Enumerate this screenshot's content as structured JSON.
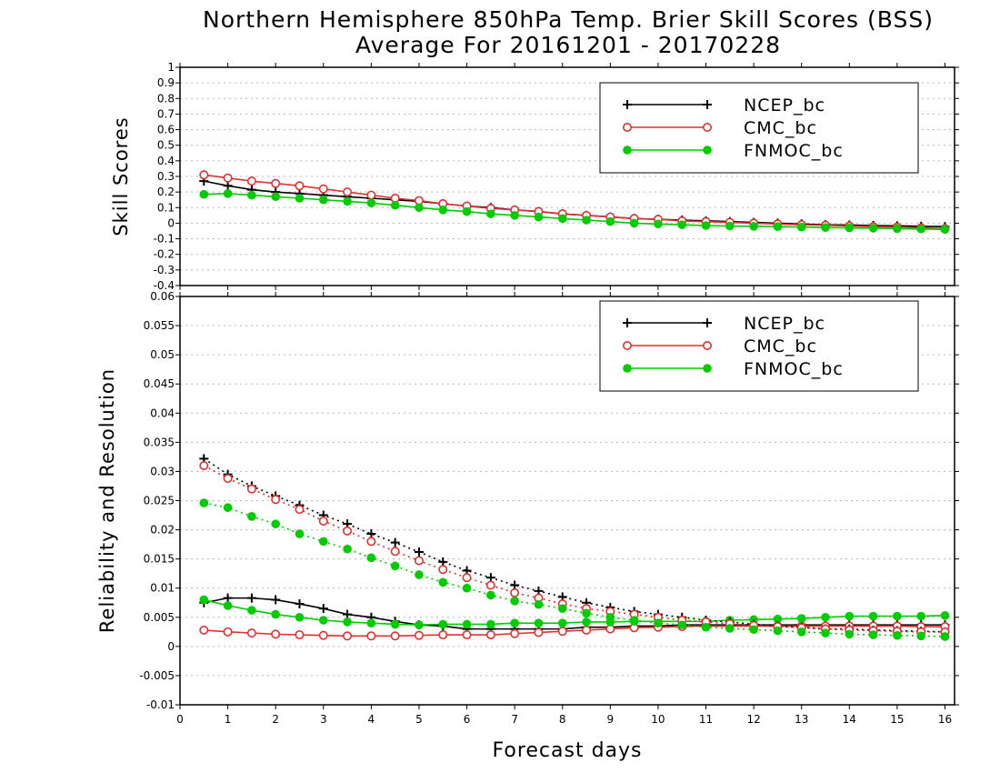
{
  "title": {
    "line1": "Northern Hemisphere 850hPa Temp. Brier Skill Scores (BSS)",
    "line2": "Average For 20161201 - 20170228"
  },
  "chart_data": [
    {
      "type": "line",
      "ylabel": "Skill Scores",
      "xlim": [
        0,
        16.2
      ],
      "ylim": [
        -0.4,
        1
      ],
      "yticks": [
        -0.4,
        -0.3,
        -0.2,
        -0.1,
        0,
        0.1,
        0.2,
        0.3,
        0.4,
        0.5,
        0.6,
        0.7,
        0.8,
        0.9,
        1
      ],
      "ytick_labels": [
        "-0.4",
        "-0.3",
        "-0.2",
        "-0.1",
        "0",
        "0.1",
        "0.2",
        "0.3",
        "0.4",
        "0.5",
        "0.6",
        "0.7",
        "0.8",
        "0.9",
        "1"
      ],
      "grid": true,
      "legend": "top-right",
      "x": [
        0.5,
        1,
        1.5,
        2,
        2.5,
        3,
        3.5,
        4,
        4.5,
        5,
        5.5,
        6,
        6.5,
        7,
        7.5,
        8,
        8.5,
        9,
        9.5,
        10,
        10.5,
        11,
        11.5,
        12,
        12.5,
        13,
        13.5,
        14,
        14.5,
        15,
        15.5,
        16
      ],
      "series": [
        {
          "name": "NCEP_bc",
          "color": "#000000",
          "marker": "plus",
          "values": [
            0.27,
            0.24,
            0.215,
            0.2,
            0.19,
            0.18,
            0.17,
            0.16,
            0.15,
            0.14,
            0.125,
            0.11,
            0.1,
            0.085,
            0.075,
            0.06,
            0.05,
            0.04,
            0.03,
            0.025,
            0.02,
            0.015,
            0.01,
            0.005,
            0.0,
            -0.005,
            -0.01,
            -0.012,
            -0.015,
            -0.017,
            -0.02,
            -0.022
          ]
        },
        {
          "name": "CMC_bc",
          "color": "#e03030",
          "marker": "circle-open",
          "values": [
            0.31,
            0.29,
            0.27,
            0.255,
            0.24,
            0.22,
            0.2,
            0.18,
            0.16,
            0.145,
            0.125,
            0.11,
            0.095,
            0.085,
            0.075,
            0.06,
            0.05,
            0.04,
            0.03,
            0.025,
            0.015,
            0.01,
            0.005,
            0.0,
            -0.005,
            -0.01,
            -0.013,
            -0.018,
            -0.022,
            -0.025,
            -0.03,
            -0.035
          ]
        },
        {
          "name": "FNMOC_bc",
          "color": "#00cc00",
          "marker": "circle-filled",
          "values": [
            0.185,
            0.19,
            0.18,
            0.17,
            0.16,
            0.15,
            0.14,
            0.13,
            0.115,
            0.1,
            0.085,
            0.075,
            0.06,
            0.05,
            0.04,
            0.03,
            0.02,
            0.01,
            0.0,
            -0.005,
            -0.01,
            -0.015,
            -0.018,
            -0.02,
            -0.022,
            -0.025,
            -0.028,
            -0.03,
            -0.032,
            -0.035,
            -0.037,
            -0.04
          ]
        }
      ]
    },
    {
      "type": "line",
      "xlabel": "Forecast days",
      "ylabel": "Reliability and Resolution",
      "xlim": [
        0,
        16.2
      ],
      "ylim": [
        -0.01,
        0.06
      ],
      "xticks": [
        0,
        1,
        2,
        3,
        4,
        5,
        6,
        7,
        8,
        9,
        10,
        11,
        12,
        13,
        14,
        15,
        16
      ],
      "xtick_labels": [
        "0",
        "1",
        "2",
        "3",
        "4",
        "5",
        "6",
        "7",
        "8",
        "9",
        "10",
        "11",
        "12",
        "13",
        "14",
        "15",
        "16"
      ],
      "yticks": [
        -0.01,
        -0.005,
        0,
        0.005,
        0.01,
        0.015,
        0.02,
        0.025,
        0.03,
        0.035,
        0.04,
        0.045,
        0.05,
        0.055,
        0.06
      ],
      "ytick_labels": [
        "-0.01",
        "-0.005",
        "0",
        "0.005",
        "0.01",
        "0.015",
        "0.02",
        "0.025",
        "0.03",
        "0.035",
        "0.04",
        "0.045",
        "0.05",
        "0.055",
        "0.06"
      ],
      "grid": true,
      "legend": "top-right",
      "x": [
        0.5,
        1,
        1.5,
        2,
        2.5,
        3,
        3.5,
        4,
        4.5,
        5,
        5.5,
        6,
        6.5,
        7,
        7.5,
        8,
        8.5,
        9,
        9.5,
        10,
        10.5,
        11,
        11.5,
        12,
        12.5,
        13,
        13.5,
        14,
        14.5,
        15,
        15.5,
        16
      ],
      "series": [
        {
          "name": "NCEP_bc",
          "color": "#000000",
          "marker": "plus",
          "line": "solid",
          "values": [
            0.0075,
            0.0083,
            0.0083,
            0.008,
            0.0073,
            0.0065,
            0.0055,
            0.005,
            0.0043,
            0.0037,
            0.0035,
            0.003,
            0.003,
            0.003,
            0.003,
            0.003,
            0.0033,
            0.0033,
            0.0035,
            0.0035,
            0.0037,
            0.0037,
            0.0037,
            0.0037,
            0.0037,
            0.0037,
            0.0037,
            0.0037,
            0.0037,
            0.0037,
            0.0037,
            0.0037
          ]
        },
        {
          "name": "CMC_bc",
          "color": "#e03030",
          "marker": "circle-open",
          "line": "solid",
          "values": [
            0.0028,
            0.0025,
            0.0023,
            0.0021,
            0.002,
            0.0019,
            0.0018,
            0.0018,
            0.0018,
            0.0019,
            0.002,
            0.002,
            0.002,
            0.0022,
            0.0024,
            0.0026,
            0.0028,
            0.003,
            0.0032,
            0.0033,
            0.0034,
            0.0035,
            0.0035,
            0.0035,
            0.0035,
            0.0035,
            0.0035,
            0.0035,
            0.0035,
            0.0035,
            0.0034,
            0.0034
          ]
        },
        {
          "name": "FNMOC_bc",
          "color": "#00cc00",
          "marker": "circle-filled",
          "line": "solid",
          "values": [
            0.008,
            0.007,
            0.0062,
            0.0055,
            0.005,
            0.0045,
            0.0042,
            0.004,
            0.0038,
            0.0037,
            0.0038,
            0.0038,
            0.0038,
            0.004,
            0.004,
            0.004,
            0.0042,
            0.0042,
            0.0043,
            0.0043,
            0.0043,
            0.0043,
            0.0045,
            0.0046,
            0.0047,
            0.0048,
            0.005,
            0.0052,
            0.0052,
            0.0052,
            0.0052,
            0.0053
          ]
        },
        {
          "color": "#000000",
          "marker": "plus",
          "line": "dotted",
          "values": [
            0.0322,
            0.0295,
            0.0275,
            0.0258,
            0.0242,
            0.0225,
            0.021,
            0.0193,
            0.0178,
            0.0162,
            0.0145,
            0.013,
            0.0118,
            0.0105,
            0.0095,
            0.0085,
            0.0075,
            0.0067,
            0.006,
            0.0055,
            0.005,
            0.0045,
            0.0042,
            0.0038,
            0.0035,
            0.0033,
            0.003,
            0.003,
            0.0028,
            0.0027,
            0.0026,
            0.0025
          ]
        },
        {
          "color": "#e03030",
          "marker": "circle-open",
          "line": "dotted",
          "values": [
            0.031,
            0.0288,
            0.027,
            0.0252,
            0.0235,
            0.0215,
            0.0198,
            0.018,
            0.0163,
            0.0147,
            0.0132,
            0.0118,
            0.0105,
            0.0092,
            0.0083,
            0.0073,
            0.0065,
            0.006,
            0.0055,
            0.005,
            0.0045,
            0.0042,
            0.0039,
            0.0036,
            0.0034,
            0.0032,
            0.003,
            0.0028,
            0.0027,
            0.0026,
            0.0025,
            0.0025
          ]
        },
        {
          "color": "#00cc00",
          "marker": "circle-filled",
          "line": "dotted",
          "values": [
            0.0246,
            0.0238,
            0.0223,
            0.021,
            0.0193,
            0.018,
            0.0167,
            0.0152,
            0.0138,
            0.0123,
            0.011,
            0.01,
            0.0088,
            0.0078,
            0.0072,
            0.0065,
            0.0057,
            0.005,
            0.0045,
            0.004,
            0.0037,
            0.0033,
            0.0031,
            0.0029,
            0.0027,
            0.0025,
            0.0023,
            0.0021,
            0.002,
            0.0019,
            0.0018,
            0.0017
          ]
        }
      ]
    }
  ]
}
